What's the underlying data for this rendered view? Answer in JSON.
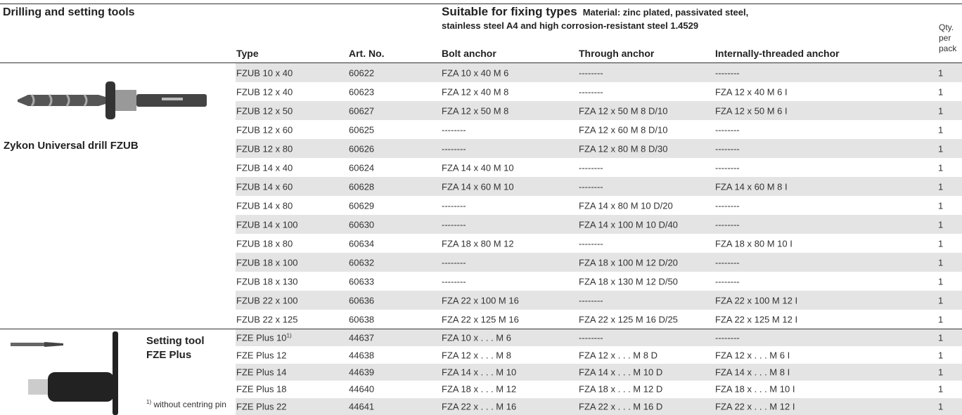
{
  "title": "Drilling and setting tools",
  "suitable": "Suitable for fixing types",
  "material": [
    "Material: zinc plated, passivated steel,",
    "stainless steel A4 and high corrosion-resistant steel 1.4529"
  ],
  "qty_header": "Qty. per pack",
  "columns": [
    "Type",
    "Art. No.",
    "Bolt anchor",
    "Through anchor",
    "Internally-threaded anchor"
  ],
  "groups": [
    {
      "label": "Zykon Universal drill FZUB",
      "rows": [
        [
          "FZUB 10 x 40",
          "60622",
          "FZA 10 x 40 M 6",
          "--------",
          "--------",
          1
        ],
        [
          "FZUB 12 x 40",
          "60623",
          "FZA 12 x 40 M 8",
          "--------",
          "FZA 12 x 40 M 6 I",
          1
        ],
        [
          "FZUB 12 x 50",
          "60627",
          "FZA 12 x 50 M 8",
          "FZA 12 x 50 M 8 D/10",
          "FZA 12 x 50 M 6 I",
          1
        ],
        [
          "FZUB 12 x 60",
          "60625",
          "--------",
          "FZA 12 x 60 M 8 D/10",
          "--------",
          1
        ],
        [
          "FZUB 12 x 80",
          "60626",
          "--------",
          "FZA 12 x 80 M 8 D/30",
          "--------",
          1
        ],
        [
          "FZUB 14 x 40",
          "60624",
          "FZA 14 x 40 M 10",
          "--------",
          "--------",
          1
        ],
        [
          "FZUB 14 x 60",
          "60628",
          "FZA 14 x 60 M 10",
          "--------",
          "FZA 14 x 60 M 8 I",
          1
        ],
        [
          "FZUB 14 x 80",
          "60629",
          "--------",
          "FZA 14 x 80 M 10 D/20",
          "--------",
          1
        ],
        [
          "FZUB 14 x 100",
          "60630",
          "--------",
          "FZA 14 x 100 M 10 D/40",
          "--------",
          1
        ],
        [
          "FZUB 18 x 80",
          "60634",
          "FZA 18 x 80 M 12",
          "--------",
          "FZA 18 x 80 M 10 I",
          1
        ],
        [
          "FZUB 18 x 100",
          "60632",
          "--------",
          "FZA 18 x 100 M 12 D/20",
          "--------",
          1
        ],
        [
          "FZUB 18 x 130",
          "60633",
          "--------",
          "FZA 18 x 130 M 12 D/50",
          "--------",
          1
        ],
        [
          "FZUB 22 x 100",
          "60636",
          "FZA 22 x 100 M 16",
          "--------",
          "FZA 22 x 100 M 12 I",
          1
        ],
        [
          "FZUB 22 x 125",
          "60638",
          "FZA 22 x 125 M 16",
          "FZA 22 x 125 M 16 D/25",
          "FZA 22 x 125 M 12 I",
          1
        ]
      ]
    },
    {
      "label": "Setting tool FZE Plus",
      "footnote_mark": "1)",
      "footnote": "without centring pin",
      "rows": [
        [
          "FZE Plus 10",
          "44637",
          "FZA 10 x . . . M 6",
          "--------",
          "--------",
          1
        ],
        [
          "FZE Plus 12",
          "44638",
          "FZA 12 x . . . M 8",
          "FZA 12 x . . . M 8 D",
          "FZA 12 x . . . M 6 I",
          1
        ],
        [
          "FZE Plus 14",
          "44639",
          "FZA 14 x . . . M 10",
          "FZA 14 x . . . M 10 D",
          "FZA 14 x . . . M 8 I",
          1
        ],
        [
          "FZE Plus 18",
          "44640",
          "FZA 18 x . . . M 12",
          "FZA 18 x . . . M 12 D",
          "FZA 18 x . . . M 10 I",
          1
        ],
        [
          "FZE Plus 22",
          "44641",
          "FZA 22 x . . . M 16",
          "FZA 22 x . . . M 16 D",
          "FZA 22 x . . . M 12 I",
          1
        ]
      ]
    }
  ]
}
